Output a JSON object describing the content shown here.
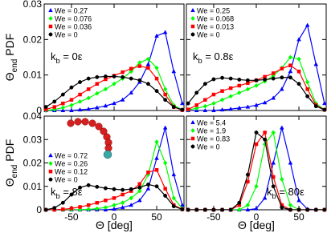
{
  "chart_data": [
    {
      "type": "line",
      "xlim": [
        -82,
        82
      ],
      "xticks": [
        -50,
        0,
        50
      ],
      "ylim": [
        0,
        0.03
      ],
      "yticks": [
        0,
        0.01,
        0.02,
        0.03
      ],
      "ylabel": {
        "main": "Θ",
        "sub": "end",
        "rest": " PDF"
      },
      "annotation": {
        "main": "k",
        "sub": "b",
        "rest": " = 0ε"
      },
      "legend_loc": "upper left",
      "x": [
        -80,
        -70,
        -60,
        -50,
        -40,
        -30,
        -20,
        -10,
        0,
        10,
        20,
        30,
        40,
        50,
        60,
        70,
        80
      ],
      "series": [
        {
          "name": "We = 0.27",
          "color": "#0000ff",
          "marker": "triangle",
          "values": [
            0,
            0,
            0,
            0,
            0.0002,
            0.0004,
            0.0008,
            0.0013,
            0.002,
            0.003,
            0.005,
            0.008,
            0.013,
            0.021,
            0.022,
            0.011,
            0.002
          ]
        },
        {
          "name": "We = 0.076",
          "color": "#00ff00",
          "marker": "diamond",
          "values": [
            0,
            0.0003,
            0.0008,
            0.0015,
            0.0025,
            0.0035,
            0.0048,
            0.006,
            0.0075,
            0.009,
            0.011,
            0.0135,
            0.0145,
            0.012,
            0.006,
            0.0015,
            0.0002
          ]
        },
        {
          "name": "We = 0.036",
          "color": "#ff0000",
          "marker": "square",
          "values": [
            0.0003,
            0.001,
            0.002,
            0.003,
            0.0045,
            0.006,
            0.0075,
            0.0088,
            0.0098,
            0.0108,
            0.0118,
            0.0125,
            0.012,
            0.009,
            0.0045,
            0.001,
            0.0001
          ]
        },
        {
          "name": "We = 0",
          "color": "#000000",
          "marker": "circle",
          "values": [
            0.001,
            0.0025,
            0.0045,
            0.0065,
            0.008,
            0.009,
            0.0094,
            0.0096,
            0.0096,
            0.0094,
            0.009,
            0.0085,
            0.0075,
            0.0055,
            0.003,
            0.001,
            0.0002
          ]
        }
      ]
    },
    {
      "type": "line",
      "xlim": [
        -82,
        82
      ],
      "xticks": [
        -50,
        0,
        50
      ],
      "ylim": [
        0,
        0.03
      ],
      "yticks": [
        0,
        0.01,
        0.02,
        0.03
      ],
      "annotation": {
        "main": "k",
        "sub": "b",
        "rest": " = 0.8ε"
      },
      "legend_loc": "upper left",
      "x": [
        -80,
        -70,
        -60,
        -50,
        -40,
        -30,
        -20,
        -10,
        0,
        10,
        20,
        30,
        40,
        50,
        60,
        70,
        80
      ],
      "series": [
        {
          "name": "We = 0.25",
          "color": "#0000ff",
          "marker": "triangle",
          "values": [
            0,
            0,
            0,
            0,
            0.0002,
            0.0004,
            0.0007,
            0.001,
            0.0015,
            0.0022,
            0.0035,
            0.006,
            0.011,
            0.02,
            0.024,
            0.013,
            0.002
          ]
        },
        {
          "name": "We = 0.068",
          "color": "#00ff00",
          "marker": "diamond",
          "values": [
            0.0002,
            0.0006,
            0.0012,
            0.002,
            0.003,
            0.004,
            0.005,
            0.006,
            0.007,
            0.0082,
            0.0098,
            0.012,
            0.015,
            0.0145,
            0.008,
            0.002,
            0.0002
          ]
        },
        {
          "name": "We = 0.013",
          "color": "#ff0000",
          "marker": "square",
          "values": [
            0.0003,
            0.0015,
            0.003,
            0.0045,
            0.0055,
            0.0063,
            0.007,
            0.0077,
            0.0085,
            0.0095,
            0.0105,
            0.0118,
            0.0127,
            0.011,
            0.006,
            0.0015,
            0.0002
          ]
        },
        {
          "name": "We = 0",
          "color": "#000000",
          "marker": "circle",
          "values": [
            0.002,
            0.005,
            0.0075,
            0.0088,
            0.0092,
            0.009,
            0.0087,
            0.0085,
            0.0085,
            0.0087,
            0.009,
            0.0093,
            0.0093,
            0.0075,
            0.004,
            0.0012,
            0.0002
          ]
        }
      ]
    },
    {
      "type": "line",
      "xlim": [
        -82,
        82
      ],
      "xticks": [
        -50,
        0,
        50
      ],
      "ylim": [
        0,
        0.04
      ],
      "yticks": [
        0,
        0.01,
        0.02,
        0.03,
        0.04
      ],
      "ylabel": {
        "main": "Θ",
        "sub": "end",
        "rest": " PDF"
      },
      "xlabel": "Θ [deg]",
      "annotation": {
        "main": "k",
        "sub": "b",
        "rest": " = 8ε"
      },
      "legend_loc": "center left",
      "x": [
        -80,
        -70,
        -60,
        -50,
        -40,
        -30,
        -20,
        -10,
        0,
        10,
        20,
        30,
        40,
        50,
        60,
        70,
        80
      ],
      "series": [
        {
          "name": "We = 0.72",
          "color": "#0000ff",
          "marker": "triangle",
          "values": [
            0,
            0,
            0,
            0,
            0,
            0,
            0,
            0,
            0.0003,
            0.001,
            0.002,
            0.004,
            0.009,
            0.022,
            0.035,
            0.015,
            0.002
          ]
        },
        {
          "name": "We = 0.26",
          "color": "#00ff00",
          "marker": "diamond",
          "values": [
            0,
            0,
            0,
            0,
            0,
            0.0002,
            0.0005,
            0.001,
            0.002,
            0.003,
            0.005,
            0.008,
            0.015,
            0.029,
            0.02,
            0.005,
            0.0005
          ]
        },
        {
          "name": "We = 0.12",
          "color": "#ff0000",
          "marker": "square",
          "values": [
            0,
            0,
            0.0002,
            0.0006,
            0.0012,
            0.002,
            0.003,
            0.004,
            0.005,
            0.0065,
            0.008,
            0.011,
            0.016,
            0.017,
            0.009,
            0.002,
            0.0002
          ]
        },
        {
          "name": "We = 0",
          "color": "#000000",
          "marker": "circle",
          "values": [
            0,
            0.0008,
            0.003,
            0.0065,
            0.0095,
            0.0105,
            0.0098,
            0.0092,
            0.0088,
            0.0085,
            0.0088,
            0.0095,
            0.0108,
            0.01,
            0.006,
            0.0015,
            0.0002
          ]
        }
      ]
    },
    {
      "type": "line",
      "xlim": [
        -82,
        82
      ],
      "xticks": [
        -50,
        0,
        50
      ],
      "ylim": [
        0,
        0.04
      ],
      "yticks": [
        0,
        0.01,
        0.02,
        0.03,
        0.04
      ],
      "xlabel": "Θ [deg]",
      "annotation": {
        "main": "k",
        "sub": "b",
        "rest": " = 80ε"
      },
      "legend_loc": "upper left",
      "x": [
        -80,
        -70,
        -60,
        -50,
        -40,
        -30,
        -20,
        -10,
        0,
        10,
        20,
        30,
        40,
        50,
        60,
        70,
        80
      ],
      "series": [
        {
          "name": "We = 5.4",
          "color": "#0000ff",
          "marker": "triangle",
          "values": [
            0,
            0,
            0,
            0,
            0,
            0,
            0,
            0,
            0.0005,
            0.005,
            0.02,
            0.035,
            0.02,
            0.004,
            0.0003,
            0,
            0
          ]
        },
        {
          "name": "We = 1.9",
          "color": "#00ff00",
          "marker": "diamond",
          "values": [
            0,
            0,
            0,
            0,
            0,
            0,
            0,
            0.002,
            0.01,
            0.028,
            0.033,
            0.013,
            0.002,
            0,
            0,
            0,
            0
          ]
        },
        {
          "name": "We = 0.83",
          "color": "#ff0000",
          "marker": "square",
          "values": [
            0,
            0,
            0,
            0,
            0,
            0,
            0.002,
            0.012,
            0.028,
            0.033,
            0.014,
            0.002,
            0,
            0,
            0,
            0,
            0
          ]
        },
        {
          "name": "We = 0",
          "color": "#000000",
          "marker": "circle",
          "values": [
            0,
            0,
            0,
            0,
            0,
            0,
            0.003,
            0.015,
            0.033,
            0.03,
            0.01,
            0.001,
            0,
            0,
            0,
            0,
            0
          ]
        }
      ]
    }
  ]
}
